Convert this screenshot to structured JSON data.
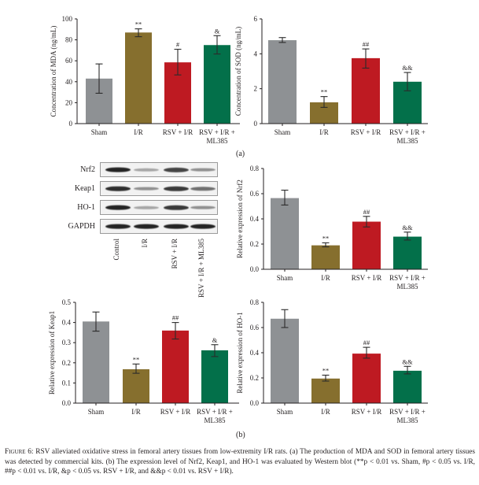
{
  "panels": {
    "a": "(a)",
    "b": "(b)"
  },
  "colors": {
    "sham": "#8e9194",
    "ir": "#866f2e",
    "rsv": "#be1a22",
    "ml385": "#03704a"
  },
  "chart_data": [
    {
      "id": "mda",
      "type": "bar",
      "title": "",
      "xlabel": "",
      "ylabel": "Concentration of MDA (ng/mL)",
      "categories": [
        "Sham",
        "I/R",
        "RSV + I/R",
        "RSV + I/R + ML385"
      ],
      "category_lines": [
        [
          "Sham"
        ],
        [
          "I/R"
        ],
        [
          "RSV + I/R"
        ],
        [
          "RSV + I/R +",
          "ML385"
        ]
      ],
      "values": [
        43,
        87,
        58.5,
        75
      ],
      "error_low": [
        29,
        83,
        46.5,
        66.5
      ],
      "error_high": [
        57,
        90.5,
        71,
        84
      ],
      "annotations": [
        "",
        "**",
        "#",
        "&"
      ],
      "ylim": [
        0,
        100
      ],
      "yticks": [
        0,
        20,
        40,
        60,
        80,
        100
      ],
      "ytick_labels": [
        "0",
        "20",
        "40",
        "60",
        "80",
        "100"
      ],
      "grid": false
    },
    {
      "id": "sod",
      "type": "bar",
      "title": "",
      "xlabel": "",
      "ylabel": "Concentration of SOD (ng/mL)",
      "categories": [
        "Sham",
        "I/R",
        "RSV + I/R",
        "RSV + I/R + ML385"
      ],
      "category_lines": [
        [
          "Sham"
        ],
        [
          "I/R"
        ],
        [
          "RSV + I/R"
        ],
        [
          "RSV + I/R +",
          "ML385"
        ]
      ],
      "values": [
        4.78,
        1.22,
        3.75,
        2.4
      ],
      "error_low": [
        4.65,
        0.93,
        3.18,
        1.88
      ],
      "error_high": [
        4.93,
        1.55,
        4.28,
        2.93
      ],
      "annotations": [
        "",
        "**",
        "##",
        "&&"
      ],
      "ylim": [
        0,
        6
      ],
      "yticks": [
        0,
        2,
        4,
        6
      ],
      "ytick_labels": [
        "0",
        "2",
        "4",
        "6"
      ],
      "grid": false
    },
    {
      "id": "nrf2",
      "type": "bar",
      "title": "",
      "xlabel": "",
      "ylabel": "Relative expression of Nrf2",
      "categories": [
        "Sham",
        "I/R",
        "RSV + I/R",
        "RSV + I/R + ML385"
      ],
      "category_lines": [
        [
          "Sham"
        ],
        [
          "I/R"
        ],
        [
          "RSV + I/R"
        ],
        [
          "RSV + I/R +",
          "ML385"
        ]
      ],
      "values": [
        0.565,
        0.19,
        0.378,
        0.259
      ],
      "error_low": [
        0.51,
        0.178,
        0.336,
        0.232
      ],
      "error_high": [
        0.628,
        0.21,
        0.42,
        0.295
      ],
      "annotations": [
        "",
        "**",
        "##",
        "&&"
      ],
      "ylim": [
        0,
        0.8
      ],
      "yticks": [
        0,
        0.2,
        0.4,
        0.6,
        0.8
      ],
      "ytick_labels": [
        "0.0",
        "0.2",
        "0.4",
        "0.6",
        "0.8"
      ],
      "grid": false
    },
    {
      "id": "keap1",
      "type": "bar",
      "title": "",
      "xlabel": "",
      "ylabel": "Relative expression of Keap1",
      "categories": [
        "Sham",
        "I/R",
        "RSV + I/R",
        "RSV + I/R + ML385"
      ],
      "category_lines": [
        [
          "Sham"
        ],
        [
          "I/R"
        ],
        [
          "RSV + I/R"
        ],
        [
          "RSV + I/R +",
          "ML385"
        ]
      ],
      "values": [
        0.405,
        0.168,
        0.36,
        0.262
      ],
      "error_low": [
        0.357,
        0.148,
        0.318,
        0.231
      ],
      "error_high": [
        0.452,
        0.194,
        0.4,
        0.29
      ],
      "annotations": [
        "",
        "**",
        "##",
        "&"
      ],
      "ylim": [
        0,
        0.5
      ],
      "yticks": [
        0,
        0.1,
        0.2,
        0.3,
        0.4,
        0.5
      ],
      "ytick_labels": [
        "0.0",
        "0.1",
        "0.2",
        "0.3",
        "0.4",
        "0.5"
      ],
      "grid": false
    },
    {
      "id": "ho1",
      "type": "bar",
      "title": "",
      "xlabel": "",
      "ylabel": "Relative expression of HO-1",
      "categories": [
        "Sham",
        "I/R",
        "RSV + I/R",
        "RSV + I/R + ML385"
      ],
      "category_lines": [
        [
          "Sham"
        ],
        [
          "I/R"
        ],
        [
          "RSV + I/R"
        ],
        [
          "RSV + I/R +",
          "ML385"
        ]
      ],
      "values": [
        0.67,
        0.195,
        0.393,
        0.257
      ],
      "error_low": [
        0.6,
        0.175,
        0.357,
        0.232
      ],
      "error_high": [
        0.742,
        0.222,
        0.443,
        0.292
      ],
      "annotations": [
        "",
        "**",
        "##",
        "&&"
      ],
      "ylim": [
        0,
        0.8
      ],
      "yticks": [
        0,
        0.2,
        0.4,
        0.6,
        0.8
      ],
      "ytick_labels": [
        "0.0",
        "0.2",
        "0.4",
        "0.6",
        "0.8"
      ],
      "grid": false
    }
  ],
  "western_blot": {
    "rows": [
      {
        "name": "Nrf2",
        "intensity": [
          0.95,
          0.35,
          0.8,
          0.45
        ]
      },
      {
        "name": "Keap1",
        "intensity": [
          0.9,
          0.45,
          0.85,
          0.6
        ]
      },
      {
        "name": "HO-1",
        "intensity": [
          0.95,
          0.35,
          0.85,
          0.45
        ]
      },
      {
        "name": "GAPDH",
        "intensity": [
          0.95,
          0.95,
          0.95,
          0.95
        ]
      }
    ],
    "lanes": [
      "Control",
      "I/R",
      "RSV + I/R",
      "RSV + I/R + ML385"
    ]
  },
  "caption": {
    "label": "Figure 6:",
    "text": " RSV alleviated oxidative stress in femoral artery tissues from low-extremity I/R rats. (a) The production of MDA and SOD in femoral artery tissues was detected by commercial kits. (b) The expression level of Nrf2, Keap1, and HO-1 was evaluated by Western blot (**p < 0.01 vs. Sham, #p < 0.05 vs. I/R, ##p < 0.01 vs. I/R, &p < 0.05 vs. RSV + I/R, and &&p < 0.01 vs. RSV + I/R)."
  }
}
